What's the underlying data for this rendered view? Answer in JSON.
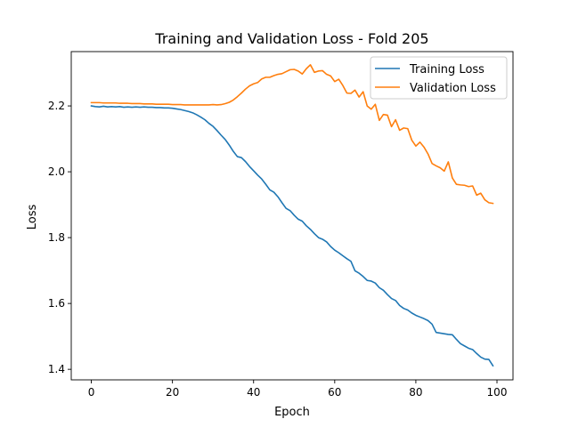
{
  "chart_data": {
    "type": "line",
    "title": "Training and Validation Loss - Fold 205",
    "xlabel": "Epoch",
    "ylabel": "Loss",
    "xlim": [
      -4.95,
      103.95
    ],
    "ylim": [
      1.368,
      2.365
    ],
    "xticks": [
      0,
      20,
      40,
      60,
      80,
      100
    ],
    "yticks": [
      1.4,
      1.6,
      1.8,
      2.0,
      2.2
    ],
    "xtick_labels": [
      "0",
      "20",
      "40",
      "60",
      "80",
      "100"
    ],
    "ytick_labels": [
      "1.4",
      "1.6",
      "1.8",
      "2.0",
      "2.2"
    ],
    "grid": false,
    "legend_position": "top-right",
    "x": [
      0,
      1,
      2,
      3,
      4,
      5,
      6,
      7,
      8,
      9,
      10,
      11,
      12,
      13,
      14,
      15,
      16,
      17,
      18,
      19,
      20,
      21,
      22,
      23,
      24,
      25,
      26,
      27,
      28,
      29,
      30,
      31,
      32,
      33,
      34,
      35,
      36,
      37,
      38,
      39,
      40,
      41,
      42,
      43,
      44,
      45,
      46,
      47,
      48,
      49,
      50,
      51,
      52,
      53,
      54,
      55,
      56,
      57,
      58,
      59,
      60,
      61,
      62,
      63,
      64,
      65,
      66,
      67,
      68,
      69,
      70,
      71,
      72,
      73,
      74,
      75,
      76,
      77,
      78,
      79,
      80,
      81,
      82,
      83,
      84,
      85,
      86,
      87,
      88,
      89,
      90,
      91,
      92,
      93,
      94,
      95,
      96,
      97,
      98,
      99
    ],
    "series": [
      {
        "name": "Training Loss",
        "color": "#1f77b4",
        "values": [
          2.2,
          2.198,
          2.197,
          2.199,
          2.197,
          2.198,
          2.197,
          2.198,
          2.196,
          2.197,
          2.196,
          2.197,
          2.196,
          2.197,
          2.196,
          2.196,
          2.195,
          2.195,
          2.194,
          2.194,
          2.193,
          2.191,
          2.189,
          2.186,
          2.183,
          2.179,
          2.173,
          2.166,
          2.158,
          2.147,
          2.138,
          2.125,
          2.111,
          2.098,
          2.081,
          2.062,
          2.046,
          2.043,
          2.031,
          2.016,
          2.003,
          1.99,
          1.978,
          1.962,
          1.945,
          1.938,
          1.924,
          1.906,
          1.889,
          1.882,
          1.868,
          1.856,
          1.85,
          1.836,
          1.825,
          1.812,
          1.8,
          1.795,
          1.787,
          1.773,
          1.762,
          1.754,
          1.745,
          1.736,
          1.728,
          1.699,
          1.692,
          1.682,
          1.67,
          1.668,
          1.662,
          1.648,
          1.64,
          1.627,
          1.615,
          1.609,
          1.594,
          1.585,
          1.58,
          1.571,
          1.564,
          1.559,
          1.554,
          1.548,
          1.537,
          1.512,
          1.51,
          1.508,
          1.506,
          1.505,
          1.491,
          1.478,
          1.471,
          1.464,
          1.46,
          1.448,
          1.437,
          1.431,
          1.43,
          1.411
        ]
      },
      {
        "name": "Validation Loss",
        "color": "#ff7f0e",
        "values": [
          2.21,
          2.21,
          2.21,
          2.209,
          2.209,
          2.209,
          2.209,
          2.208,
          2.208,
          2.208,
          2.207,
          2.207,
          2.207,
          2.206,
          2.206,
          2.206,
          2.205,
          2.205,
          2.205,
          2.205,
          2.204,
          2.204,
          2.204,
          2.203,
          2.203,
          2.203,
          2.203,
          2.203,
          2.203,
          2.203,
          2.204,
          2.203,
          2.204,
          2.207,
          2.211,
          2.218,
          2.228,
          2.239,
          2.251,
          2.261,
          2.267,
          2.271,
          2.282,
          2.287,
          2.287,
          2.292,
          2.296,
          2.298,
          2.304,
          2.31,
          2.311,
          2.306,
          2.297,
          2.313,
          2.325,
          2.302,
          2.306,
          2.307,
          2.296,
          2.291,
          2.274,
          2.281,
          2.262,
          2.239,
          2.238,
          2.248,
          2.227,
          2.243,
          2.2,
          2.19,
          2.205,
          2.156,
          2.174,
          2.172,
          2.137,
          2.158,
          2.126,
          2.133,
          2.131,
          2.096,
          2.078,
          2.09,
          2.075,
          2.054,
          2.025,
          2.018,
          2.012,
          2.002,
          2.03,
          1.981,
          1.962,
          1.96,
          1.959,
          1.955,
          1.957,
          1.929,
          1.935,
          1.915,
          1.906,
          1.904
        ]
      }
    ]
  }
}
